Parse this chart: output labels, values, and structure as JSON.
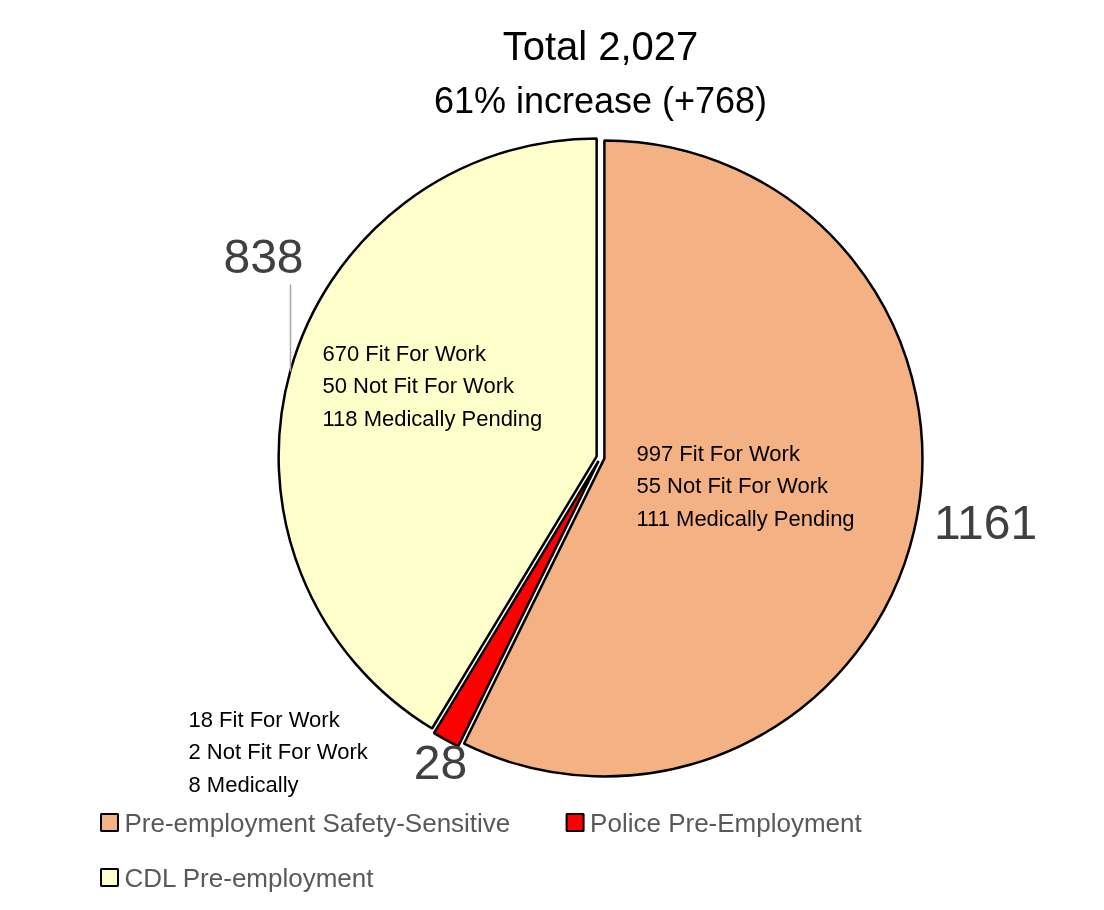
{
  "chart_data": {
    "type": "pie",
    "title": "Total 2,027",
    "subtitle": "61% increase (+768)",
    "categories": [
      "Pre-employment Safety-Sensitive",
      "Police Pre-Employment",
      "CDL Pre-employment"
    ],
    "values": [
      1161,
      28,
      838
    ],
    "colors": [
      "#f4b183",
      "#ff0000",
      "#ffffcc"
    ],
    "data_labels": true,
    "legend": "bottom",
    "annotations": [
      "997 Fit For Work\n55 Not Fit For Work\n111 Medically Pending",
      "18 Fit For Work\n2 Not Fit For Work\n8 Medically",
      "670 Fit For Work\n50 Not Fit For Work\n118 Medically Pending"
    ]
  }
}
